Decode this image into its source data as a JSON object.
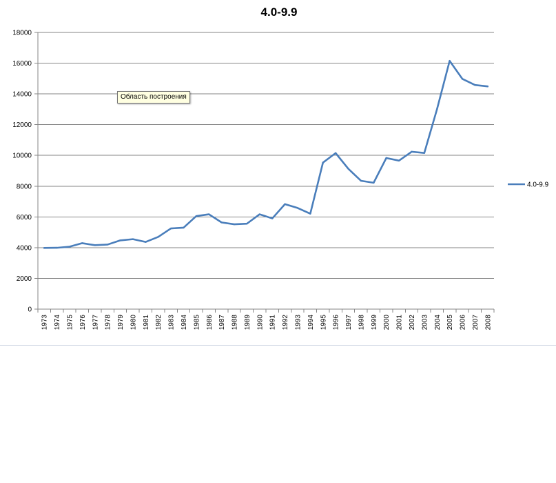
{
  "chart_data": {
    "type": "line",
    "title": "4.0-9.9",
    "xlabel": "",
    "ylabel": "",
    "ylim": [
      0,
      18000
    ],
    "y_ticks": [
      0,
      2000,
      4000,
      6000,
      8000,
      10000,
      12000,
      14000,
      16000,
      18000
    ],
    "grid": "horizontal",
    "legend_position": "right",
    "categories": [
      "1973",
      "1974",
      "1975",
      "1976",
      "1977",
      "1978",
      "1979",
      "1980",
      "1981",
      "1982",
      "1983",
      "1984",
      "1985",
      "1986",
      "1987",
      "1988",
      "1989",
      "1990",
      "1991",
      "1992",
      "1993",
      "1994",
      "1995",
      "1996",
      "1997",
      "1998",
      "1999",
      "2000",
      "2001",
      "2002",
      "2003",
      "2004",
      "2005",
      "2006",
      "2007",
      "2008"
    ],
    "series": [
      {
        "name": "4.0-9.9",
        "color": "#4a7ebb",
        "values": [
          3980,
          3990,
          4060,
          4290,
          4160,
          4200,
          4470,
          4550,
          4370,
          4700,
          5250,
          5300,
          6050,
          6170,
          5640,
          5520,
          5560,
          6170,
          5900,
          6830,
          6580,
          6210,
          9530,
          10150,
          9130,
          8350,
          8220,
          9830,
          9660,
          10240,
          10160,
          13000,
          16150,
          14980,
          14580,
          14490
        ]
      }
    ]
  },
  "tooltip": {
    "label": "Область построения"
  }
}
